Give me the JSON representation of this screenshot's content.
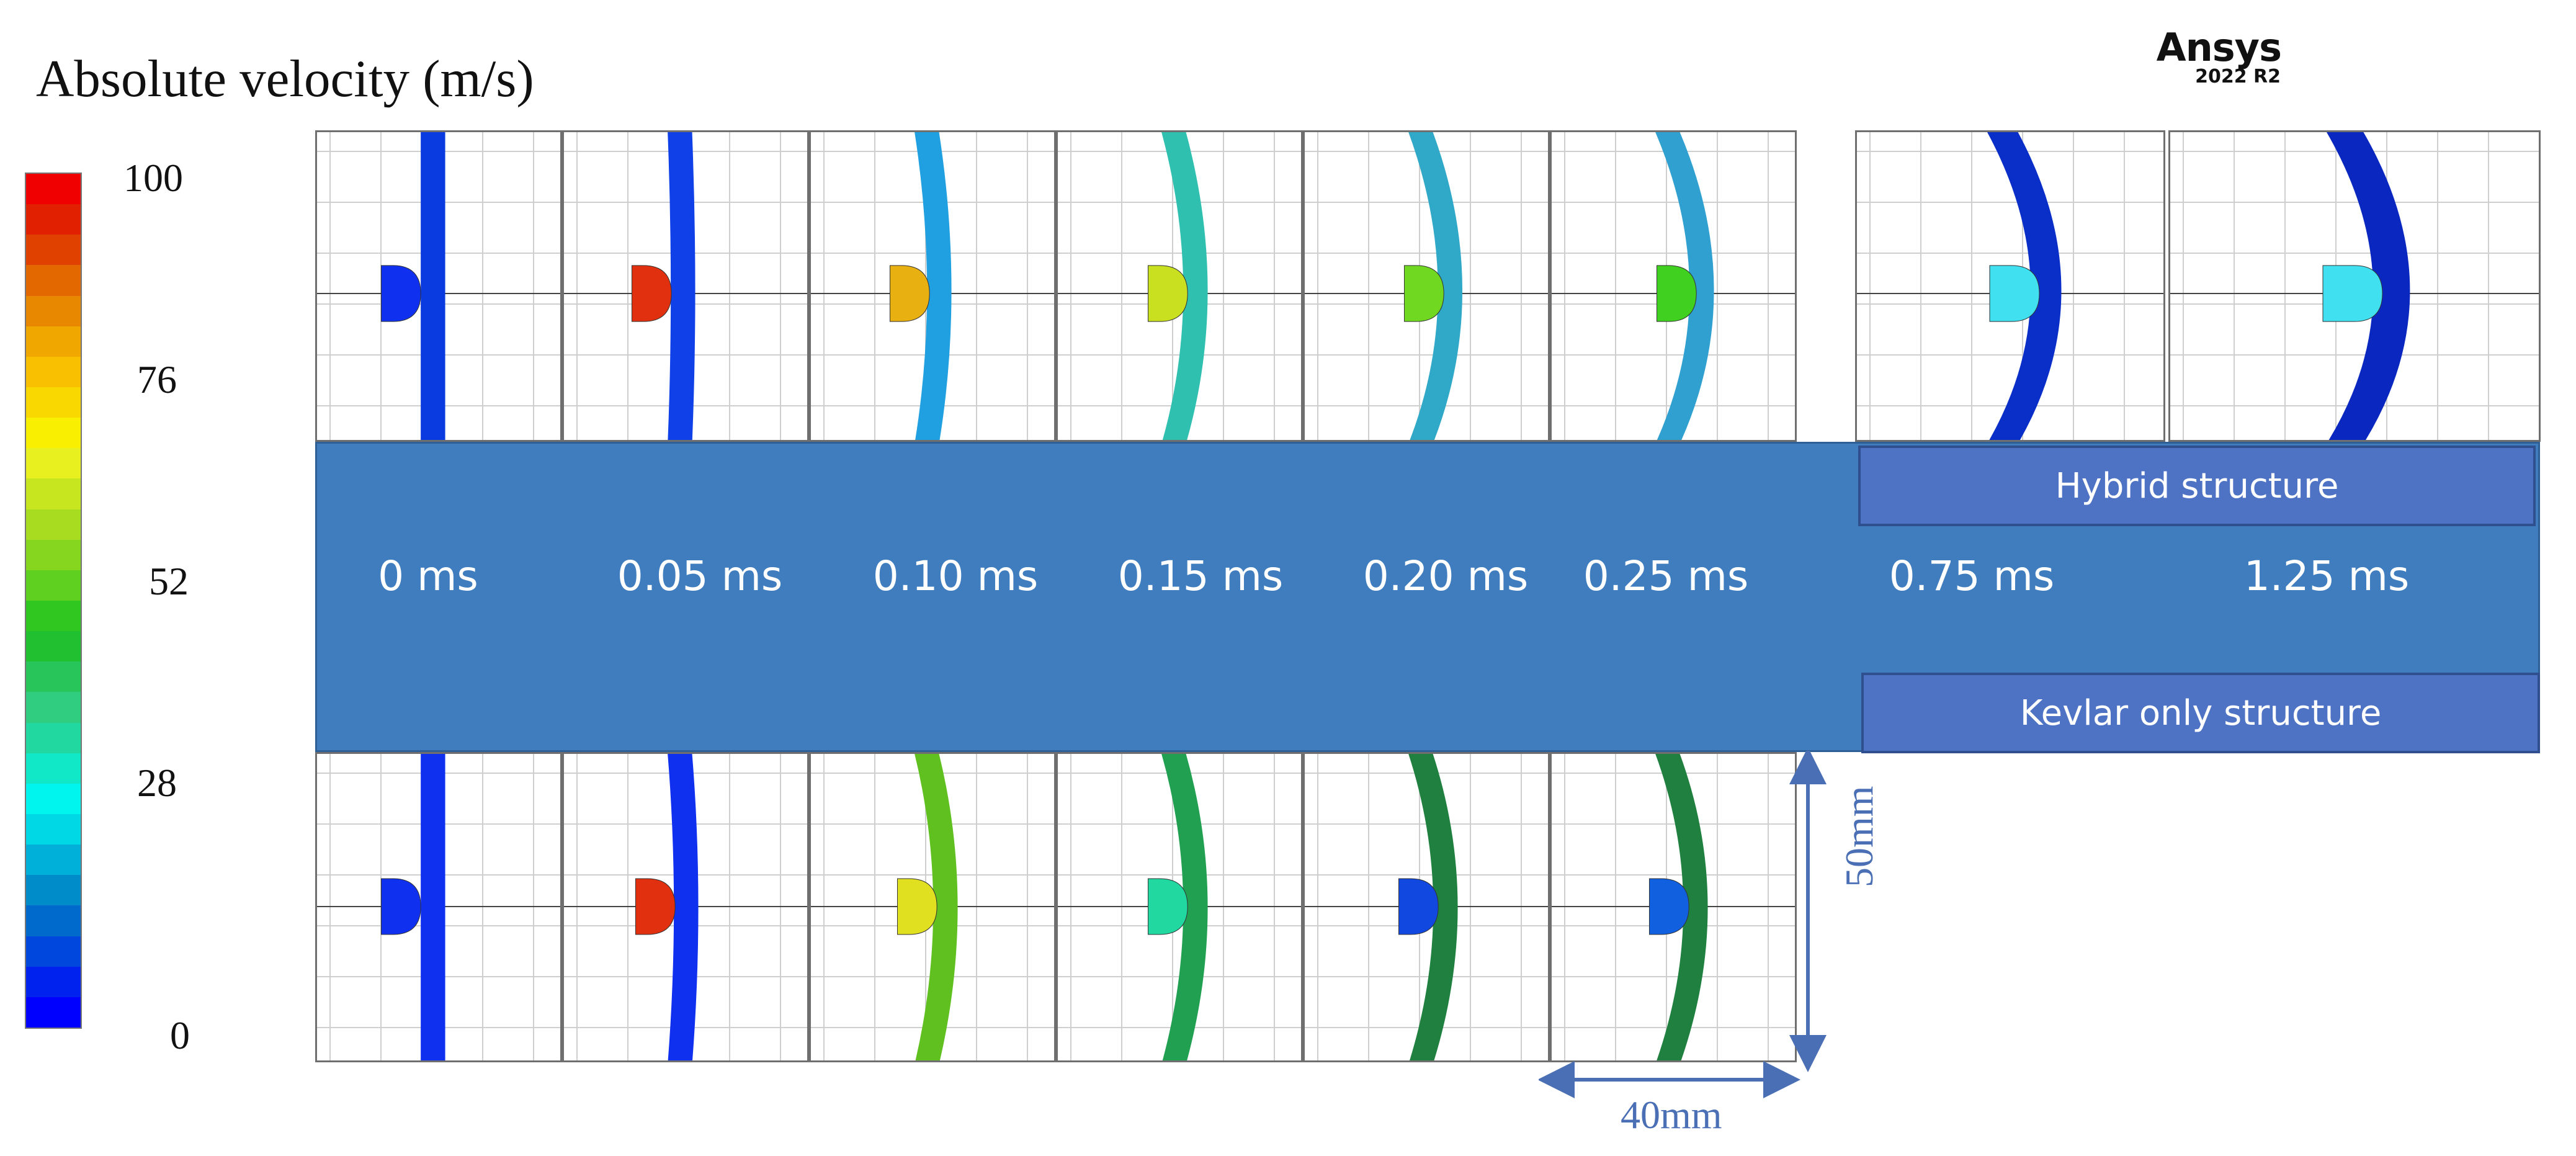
{
  "title": "Absolute velocity (m/s)",
  "logo": {
    "name": "Ansys",
    "version": "2022 R2"
  },
  "colorbar": {
    "ticks": [
      "100",
      "76",
      "52",
      "28",
      "0"
    ],
    "colors": [
      "#0000ff",
      "#0022ee",
      "#0048dd",
      "#006acc",
      "#008cc8",
      "#00b0d8",
      "#00d8e6",
      "#00f5ef",
      "#10e8c8",
      "#20d8a0",
      "#30cc80",
      "#28c65a",
      "#20c030",
      "#30c820",
      "#60d020",
      "#86d620",
      "#a8dc20",
      "#c8e620",
      "#e8f020",
      "#f8f000",
      "#f8d800",
      "#f8c000",
      "#f0a800",
      "#e88800",
      "#e46800",
      "#e04000",
      "#e02000",
      "#f00000"
    ]
  },
  "times": [
    "0 ms",
    "0.05 ms",
    "0.10 ms",
    "0.15 ms",
    "0.20 ms",
    "0.25 ms",
    "0.75 ms",
    "1.25 ms"
  ],
  "labels": {
    "hybrid": "Hybrid structure",
    "kevlar": "Kevlar only structure"
  },
  "dimensions": {
    "height": "50mm",
    "width": "40mm"
  },
  "colors": {
    "band": "#3f7dbf",
    "label_box": "#4f73c4",
    "dimension": "#4a6fb5"
  }
}
